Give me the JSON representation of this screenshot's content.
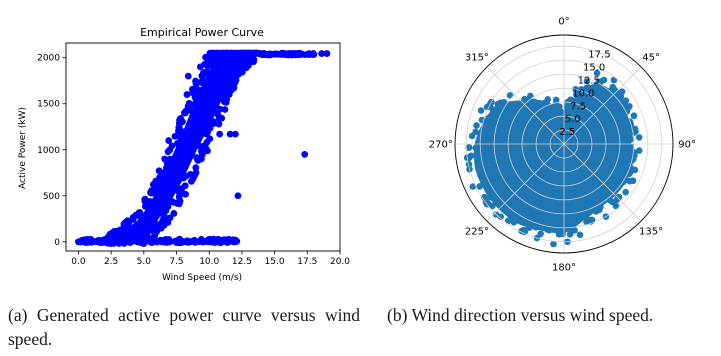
{
  "chart_data": [
    {
      "type": "scatter",
      "title": "Empirical Power Curve",
      "xlabel": "Wind Speed (m/s)",
      "ylabel": "Active Power (kW)",
      "xlim": [
        -0.95,
        20.0
      ],
      "ylim": [
        -100,
        2160
      ],
      "xticks": [
        "0.0",
        "2.5",
        "5.0",
        "7.5",
        "10.0",
        "12.5",
        "15.0",
        "17.5",
        "20.0"
      ],
      "yticks": [
        "0",
        "500",
        "1000",
        "1500",
        "2000"
      ],
      "color": "#0000ff",
      "grid": false,
      "series": [
        {
          "kind": "curve-band",
          "x": [
            0.0,
            2.5,
            3.5,
            4.5,
            5.0,
            5.5,
            6.0,
            6.5,
            7.0,
            7.5,
            8.0,
            8.5,
            9.0,
            9.5,
            10.0,
            10.5,
            11.0,
            11.5,
            12.0,
            12.5,
            13.0,
            14.0,
            15.0,
            17.0,
            19.0
          ],
          "lo": [
            0,
            0,
            0,
            40,
            80,
            150,
            220,
            330,
            420,
            550,
            680,
            830,
            980,
            1120,
            1250,
            1400,
            1560,
            1700,
            1820,
            1920,
            1980,
            2030,
            2040,
            2045,
            2045
          ],
          "hi": [
            20,
            40,
            120,
            230,
            320,
            430,
            560,
            720,
            880,
            1040,
            1200,
            1380,
            1560,
            1720,
            1860,
            1970,
            2030,
            2050,
            2050,
            2050,
            2050,
            2050,
            2050,
            2050,
            2050
          ]
        },
        {
          "kind": "points",
          "x": [
            0.0,
            0.5,
            1.0,
            1.5,
            2.0,
            2.5,
            3.0,
            3.5,
            4.0,
            4.5,
            5.0,
            5.5,
            6.0,
            6.5,
            7.0,
            7.5,
            8.0,
            8.5,
            9.0,
            9.5,
            10.0,
            10.5,
            11.0,
            11.5,
            12.0,
            17.3,
            18.6,
            19.0,
            16.4,
            17.0,
            8.1,
            8.3,
            7.9,
            8.4,
            6.6,
            6.9,
            6.2,
            9.4,
            9.8,
            10.8,
            11.6,
            12.0,
            12.2,
            5.8,
            5.0,
            4.7,
            9.0,
            8.8
          ],
          "y": [
            0,
            0,
            0,
            0,
            0,
            0,
            0,
            0,
            0,
            0,
            0,
            0,
            0,
            0,
            0,
            0,
            0,
            0,
            0,
            0,
            0,
            0,
            0,
            0,
            0,
            950,
            2045,
            2045,
            2045,
            2045,
            1400,
            1600,
            1200,
            1800,
            900,
            1100,
            700,
            900,
            1170,
            1170,
            1170,
            1170,
            500,
            150,
            60,
            130,
            1520,
            1380
          ]
        }
      ]
    },
    {
      "type": "scatter",
      "subtype": "polar",
      "theta_ticks": [
        "0°",
        "45°",
        "90°",
        "135°",
        "180°",
        "225°",
        "270°",
        "315°"
      ],
      "r_ticks": [
        "2.5",
        "5.0",
        "7.5",
        "10.0",
        "12.5",
        "15.0",
        "17.5"
      ],
      "rlim": [
        0,
        19.5
      ],
      "color": "#1f77b4",
      "grid": true,
      "series": [
        {
          "kind": "direction-envelope",
          "theta_deg": [
            0,
            15,
            30,
            45,
            60,
            75,
            90,
            105,
            120,
            135,
            150,
            165,
            180,
            195,
            210,
            225,
            240,
            255,
            270,
            285,
            300,
            315,
            330,
            345
          ],
          "r": [
            6,
            9,
            12.5,
            13,
            12.5,
            12.5,
            12,
            12,
            13,
            13,
            13,
            14,
            16,
            16,
            16.5,
            16.5,
            16.5,
            16.5,
            16,
            15,
            14,
            11,
            8,
            7
          ]
        },
        {
          "kind": "points",
          "theta_deg": [
            20,
            25,
            32,
            38,
            48,
            55,
            68,
            80,
            95,
            110,
            128,
            140,
            150,
            170,
            178,
            186,
            196,
            205,
            216,
            224,
            232,
            245,
            255,
            262,
            268,
            275,
            282,
            292,
            300,
            312,
            325,
            340,
            350,
            5,
            12,
            60,
            85,
            118
          ],
          "r": [
            12,
            14,
            13.5,
            14.5,
            14,
            13.5,
            13.5,
            13,
            13.5,
            13.5,
            14,
            14.5,
            15,
            16.5,
            17.5,
            18,
            17.5,
            17,
            17,
            17.5,
            17.5,
            18,
            17.5,
            17.5,
            17,
            16.5,
            16,
            16,
            15,
            13,
            10.5,
            8.5,
            8,
            7.5,
            10,
            13.5,
            13.5,
            14
          ]
        }
      ]
    }
  ],
  "captions": {
    "a": "(a)  Generated active power curve versus wind speed.",
    "b": "(b)  Wind direction versus wind speed."
  }
}
